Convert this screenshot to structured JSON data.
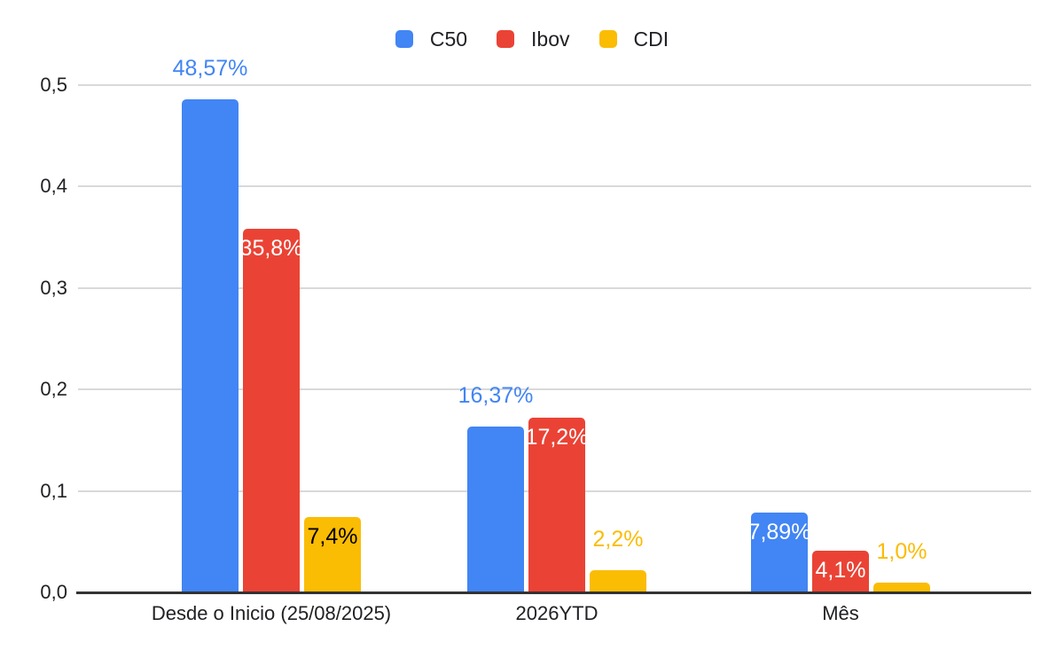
{
  "chart_data": {
    "type": "bar",
    "categories": [
      "Desde o Inicio (25/08/2025)",
      "2026YTD",
      "Mês"
    ],
    "series": [
      {
        "name": "C50",
        "color": "#4285f4",
        "values": [
          48.57,
          16.37,
          7.89
        ],
        "labels": [
          "48,57%",
          "16,37%",
          "7,89%"
        ],
        "label_placement": [
          "above",
          "above",
          "inside"
        ],
        "label_colors": [
          "#4285f4",
          "#4285f4",
          "#ffffff"
        ]
      },
      {
        "name": "Ibov",
        "color": "#ea4335",
        "values": [
          35.8,
          17.2,
          4.1
        ],
        "labels": [
          "35,8%",
          "17,2%",
          "4,1%"
        ],
        "label_placement": [
          "inside",
          "inside",
          "inside"
        ],
        "label_colors": [
          "#ffffff",
          "#ffffff",
          "#ffffff"
        ]
      },
      {
        "name": "CDI",
        "color": "#fbbc04",
        "values": [
          7.4,
          2.2,
          1.0
        ],
        "labels": [
          "7,4%",
          "2,2%",
          "1,0%"
        ],
        "label_placement": [
          "inside",
          "above",
          "above"
        ],
        "label_colors": [
          "#000000",
          "#fbbc04",
          "#fbbc04"
        ]
      }
    ],
    "y_axis": {
      "min": 0,
      "max": 0.5,
      "tick_labels": [
        "0,0",
        "0,1",
        "0,2",
        "0,3",
        "0,4",
        "0,5"
      ]
    },
    "legend_position": "top",
    "grid": true,
    "colors": {
      "gridline": "#d9d9d9",
      "axis_line": "#333333",
      "axis_text": "#202124",
      "background": "#ffffff"
    }
  }
}
